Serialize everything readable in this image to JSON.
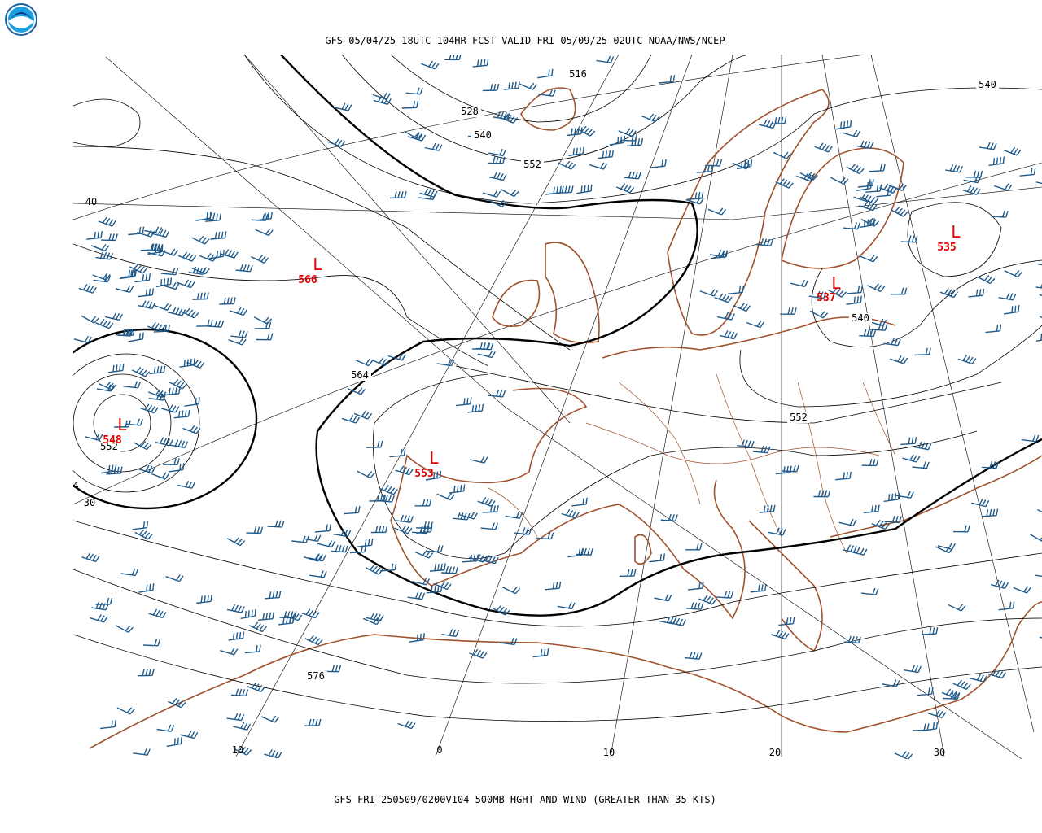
{
  "header": {
    "title": "GFS 05/04/25 18UTC 104HR FCST VALID FRI 05/09/25 02UTC NOAA/NWS/NCEP"
  },
  "footer": {
    "caption": "GFS FRI 250509/0200V104 500MB HGHT AND WIND (GREATER THAN 35 KTS)"
  },
  "contour_labels": [
    "516",
    "528",
    "540",
    "552",
    "564",
    "552",
    "576",
    "540",
    "540",
    "552"
  ],
  "lows": [
    {
      "symbol": "L",
      "value": "566"
    },
    {
      "symbol": "L",
      "value": "548"
    },
    {
      "symbol": "L",
      "value": "553"
    },
    {
      "symbol": "L",
      "value": "537"
    },
    {
      "symbol": "L",
      "value": "535"
    }
  ],
  "grid_labels": {
    "latitude": [
      "40",
      "30",
      "4"
    ],
    "longitude": [
      "10",
      "0",
      "10",
      "20",
      "30"
    ]
  }
}
